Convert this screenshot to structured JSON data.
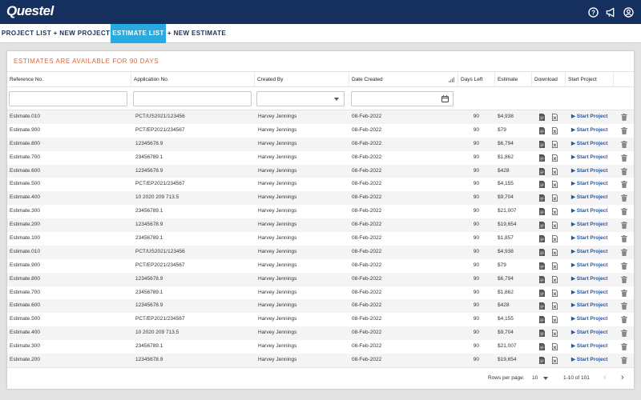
{
  "header": {
    "logo_text": "Questel"
  },
  "tabs": [
    {
      "label": "PROJECT LIST",
      "active": false
    },
    {
      "label": "+ NEW PROJECT",
      "active": false
    },
    {
      "label": "ESTIMATE LIST",
      "active": true
    },
    {
      "label": "+ NEW ESTIMATE",
      "active": false
    }
  ],
  "banner": "ESTIMATES ARE AVAILABLE FOR 90 DAYS",
  "columns": {
    "reference": "Reference No.",
    "application": "Application No.",
    "created_by": "Created By",
    "date_created": "Date Created",
    "days_left": "Days Left",
    "estimate": "Estimate",
    "download": "Download",
    "start_project": "Start Project"
  },
  "rows": [
    {
      "ref": "Estimate.010",
      "app": "PCT/US2021/123456",
      "by": "Harvey Jennings",
      "date": "08-Feb-2022",
      "days": "90",
      "est": "$4,938",
      "action": "▶ Start Project"
    },
    {
      "ref": "Estimate.900",
      "app": "PCT/EP2021/234567",
      "by": "Harvey Jennings",
      "date": "08-Feb-2022",
      "days": "90",
      "est": "$79",
      "action": "▶ Start Project"
    },
    {
      "ref": "Estimate.800",
      "app": "12345678.9",
      "by": "Harvey Jennings",
      "date": "08-Feb-2022",
      "days": "90",
      "est": "$6,794",
      "action": "▶ Start Project"
    },
    {
      "ref": "Estimate.700",
      "app": "23456789.1",
      "by": "Harvey Jennings",
      "date": "08-Feb-2022",
      "days": "90",
      "est": "$1,862",
      "action": "▶ Start Project"
    },
    {
      "ref": "Estimate.600",
      "app": "12345678.9",
      "by": "Harvey Jennings",
      "date": "08-Feb-2022",
      "days": "90",
      "est": "$428",
      "action": "▶ Start Project"
    },
    {
      "ref": "Estimate.500",
      "app": "PCT/EP2021/234567",
      "by": "Harvey Jennings",
      "date": "08-Feb-2022",
      "days": "90",
      "est": "$4,155",
      "action": "▶ Start Project"
    },
    {
      "ref": "Estimate.400",
      "app": "10 2020 209 713.5",
      "by": "Harvey Jennings",
      "date": "08-Feb-2022",
      "days": "90",
      "est": "$9,704",
      "action": "▶ Start Project"
    },
    {
      "ref": "Estimate.300",
      "app": "23456789.1",
      "by": "Harvey Jennings",
      "date": "08-Feb-2022",
      "days": "90",
      "est": "$21,007",
      "action": "▶ Start Project"
    },
    {
      "ref": "Estimate.200",
      "app": "12345678.9",
      "by": "Harvey Jennings",
      "date": "08-Feb-2022",
      "days": "90",
      "est": "$19,654",
      "action": "▶ Start Project"
    },
    {
      "ref": "Estimate.100",
      "app": "23456789.1",
      "by": "Harvey Jennings",
      "date": "08-Feb-2022",
      "days": "90",
      "est": "$1,857",
      "action": "▶ Start Project"
    },
    {
      "ref": "Estimate.010",
      "app": "PCT/US2021/123456",
      "by": "Harvey Jennings",
      "date": "08-Feb-2022",
      "days": "90",
      "est": "$4,938",
      "action": "▶ Start Project"
    },
    {
      "ref": "Estimate.900",
      "app": "PCT/EP2021/234567",
      "by": "Harvey Jennings",
      "date": "08-Feb-2022",
      "days": "90",
      "est": "$79",
      "action": "▶ Start Project"
    },
    {
      "ref": "Estimate.800",
      "app": "12345678.9",
      "by": "Harvey Jennings",
      "date": "08-Feb-2022",
      "days": "90",
      "est": "$6,794",
      "action": "▶ Start Project"
    },
    {
      "ref": "Estimate.700",
      "app": "23456789.1",
      "by": "Harvey Jennings",
      "date": "08-Feb-2022",
      "days": "90",
      "est": "$1,862",
      "action": "▶ Start Project"
    },
    {
      "ref": "Estimate.600",
      "app": "12345678.9",
      "by": "Harvey Jennings",
      "date": "08-Feb-2022",
      "days": "90",
      "est": "$428",
      "action": "▶ Start Project"
    },
    {
      "ref": "Estimate.500",
      "app": "PCT/EP2021/234567",
      "by": "Harvey Jennings",
      "date": "08-Feb-2022",
      "days": "90",
      "est": "$4,155",
      "action": "▶ Start Project"
    },
    {
      "ref": "Estimate.400",
      "app": "10 2020 209 713.5",
      "by": "Harvey Jennings",
      "date": "08-Feb-2022",
      "days": "90",
      "est": "$9,704",
      "action": "▶ Start Project"
    },
    {
      "ref": "Estimate.300",
      "app": "23456789.1",
      "by": "Harvey Jennings",
      "date": "08-Feb-2022",
      "days": "90",
      "est": "$21,007",
      "action": "▶ Start Project"
    },
    {
      "ref": "Estimate.200",
      "app": "12345678.9",
      "by": "Harvey Jennings",
      "date": "08-Feb-2022",
      "days": "90",
      "est": "$19,654",
      "action": "▶ Start Project"
    }
  ],
  "footer": {
    "rows_per_page_label": "Rows per page:",
    "rows_per_page_value": "10",
    "range": "1-10 of 101",
    "prev": "‹",
    "next": "›"
  },
  "icons": [
    "help-icon",
    "megaphone-icon",
    "user-icon",
    "pdf-icon",
    "excel-icon",
    "trash-icon",
    "calendar-icon",
    "sort-icon"
  ]
}
